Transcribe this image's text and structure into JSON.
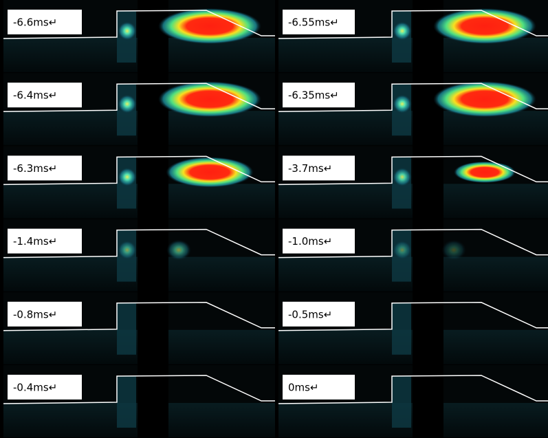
{
  "panels": [
    {
      "label": "-6.6ms↵"
    },
    {
      "label": "-6.55ms↵"
    },
    {
      "label": "-6.4ms↵"
    },
    {
      "label": "-6.35ms↵"
    },
    {
      "label": "-6.3ms↵"
    },
    {
      "label": "-3.7ms↵"
    },
    {
      "label": "-1.4ms↵"
    },
    {
      "label": "-1.0ms↵"
    },
    {
      "label": "-0.8ms↵"
    },
    {
      "label": "-0.5ms↵"
    },
    {
      "label": "-0.4ms↵"
    },
    {
      "label": "0ms↵"
    }
  ]
}
